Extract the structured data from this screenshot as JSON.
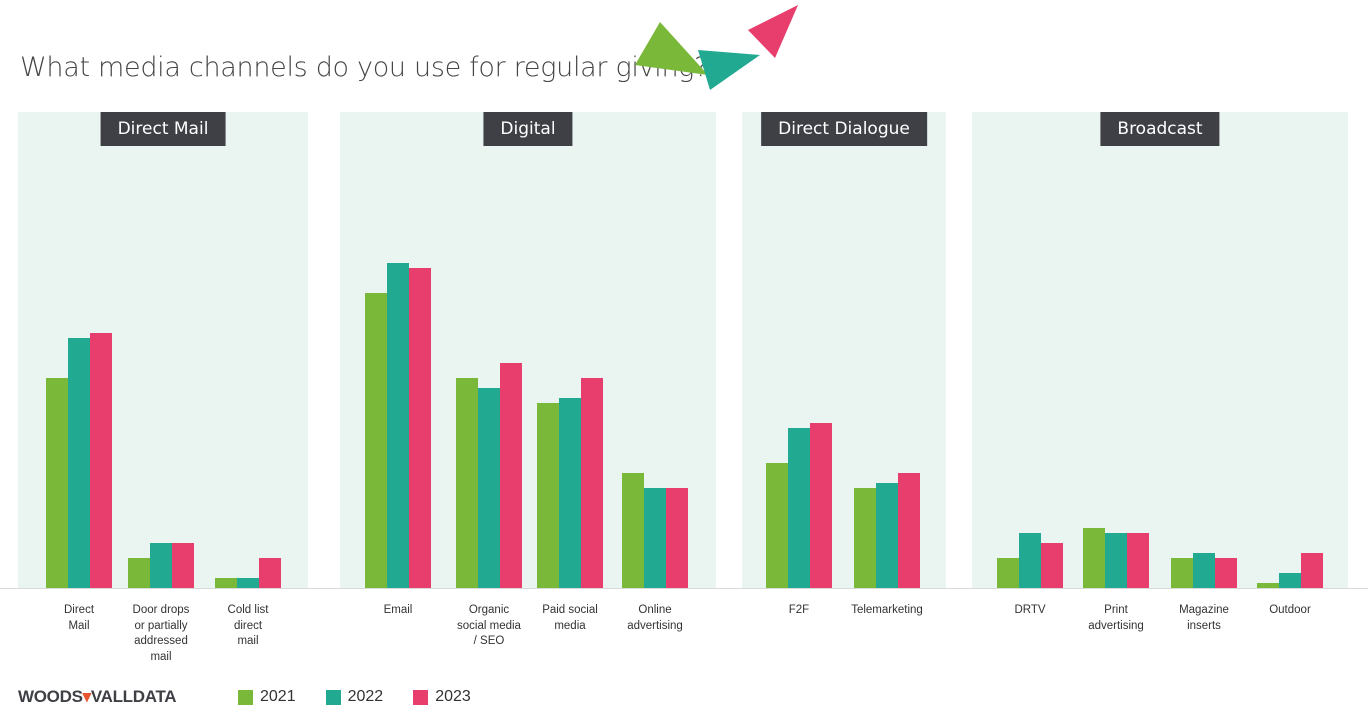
{
  "title": "What media channels do you use for regular giving?",
  "logo": "WOODS VALLDATA",
  "colors": {
    "2021": "#7ab83a",
    "2022": "#21a992",
    "2023": "#e83e6d",
    "panel": "#eaf5f2"
  },
  "chart_data": {
    "type": "bar",
    "title": "What media channels do you use for regular giving?",
    "legend_position": "bottom-left",
    "grid": false,
    "groups": [
      {
        "name": "Direct Mail",
        "categories": [
          "Direct\nMail",
          "Door drops\nor partially\naddressed\nmail",
          "Cold list\ndirect\nmail"
        ]
      },
      {
        "name": "Digital",
        "categories": [
          "Email",
          "Organic\nsocial media\n/ SEO",
          "Paid social\nmedia",
          "Online\nadvertising"
        ]
      },
      {
        "name": "Direct Dialogue",
        "categories": [
          "F2F",
          "Telemarketing"
        ]
      },
      {
        "name": "Broadcast",
        "categories": [
          "DRTV",
          "Print\nadvertising",
          "Magazine\ninserts",
          "Outdoor"
        ]
      }
    ],
    "series": [
      {
        "name": "2021",
        "values": [
          42,
          6,
          2,
          59,
          42,
          37,
          23,
          25,
          20,
          6,
          12,
          6,
          1
        ]
      },
      {
        "name": "2022",
        "values": [
          50,
          9,
          2,
          65,
          40,
          38,
          20,
          32,
          21,
          11,
          11,
          7,
          3
        ]
      },
      {
        "name": "2023",
        "values": [
          51,
          9,
          6,
          64,
          45,
          42,
          20,
          33,
          23,
          9,
          11,
          6,
          7
        ]
      }
    ]
  }
}
